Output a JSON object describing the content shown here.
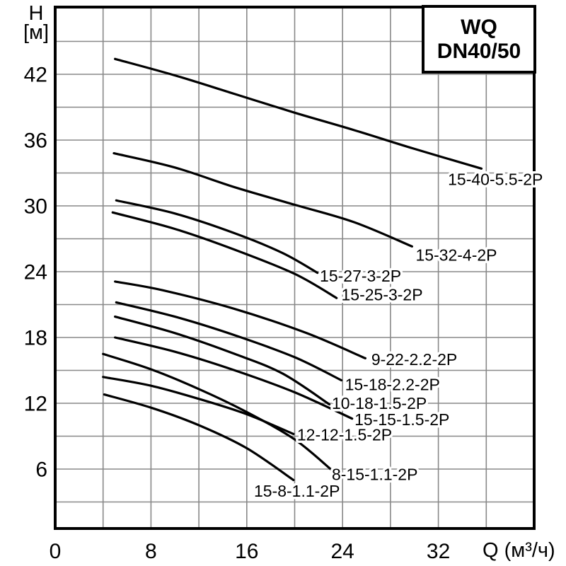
{
  "title_box": {
    "line1": "WQ",
    "line2": "DN40/50"
  },
  "axes": {
    "y_title_line1": "H",
    "y_title_line2": "[м]",
    "x_title": "Q (м³/ч)"
  },
  "colors": {
    "curve": "#000000",
    "grid": "#888888",
    "frame": "#000000",
    "text": "#000000",
    "background": "#ffffff"
  },
  "chart_data": {
    "type": "line",
    "title": "WQ DN40/50",
    "xlabel": "Q (м³/ч)",
    "ylabel": "H [м]",
    "xlim": [
      0,
      40
    ],
    "ylim": [
      0,
      48
    ],
    "x_ticks": [
      0,
      8,
      16,
      24,
      32
    ],
    "y_ticks": [
      6,
      12,
      18,
      24,
      30,
      36,
      42
    ],
    "grid": {
      "x_step": 4,
      "y_step": 3,
      "visible": true
    },
    "legend_position": "inline-labels",
    "series": [
      {
        "name": "15-40-5.5-2P",
        "points": [
          [
            5.0,
            43.4
          ],
          [
            10,
            41.9
          ],
          [
            15,
            40.2
          ],
          [
            20,
            38.5
          ],
          [
            25,
            36.9
          ],
          [
            30,
            35.2
          ],
          [
            35.6,
            33.4
          ]
        ],
        "label_at": [
          32.8,
          31.9
        ]
      },
      {
        "name": "15-32-4-2P",
        "points": [
          [
            4.9,
            34.8
          ],
          [
            10,
            33.5
          ],
          [
            15,
            31.7
          ],
          [
            20,
            30.1
          ],
          [
            25,
            28.5
          ],
          [
            29.8,
            26.3
          ]
        ],
        "label_at": [
          30.1,
          25.0
        ]
      },
      {
        "name": "15-27-3-2P",
        "points": [
          [
            5.1,
            30.5
          ],
          [
            10,
            29.3
          ],
          [
            15,
            27.5
          ],
          [
            19,
            25.7
          ],
          [
            21.9,
            23.9
          ]
        ],
        "label_at": [
          22.1,
          23.1
        ]
      },
      {
        "name": "15-25-3-2P",
        "points": [
          [
            4.8,
            29.4
          ],
          [
            10,
            27.9
          ],
          [
            15,
            26.0
          ],
          [
            20,
            23.8
          ],
          [
            23.5,
            21.6
          ]
        ],
        "label_at": [
          23.9,
          21.4
        ]
      },
      {
        "name": "9-22-2.2-2P",
        "points": [
          [
            5.0,
            23.1
          ],
          [
            9,
            22.3
          ],
          [
            15,
            20.6
          ],
          [
            21,
            18.4
          ],
          [
            25.9,
            16.1
          ]
        ],
        "label_at": [
          26.4,
          15.5
        ]
      },
      {
        "name": "15-18-2.2-2P",
        "points": [
          [
            5.1,
            21.2
          ],
          [
            10,
            19.9
          ],
          [
            15,
            18.2
          ],
          [
            20,
            16.2
          ],
          [
            23.9,
            14.1
          ]
        ],
        "label_at": [
          24.2,
          13.2
        ]
      },
      {
        "name": "10-18-1.5-2P",
        "points": [
          [
            5.0,
            19.9
          ],
          [
            10,
            18.4
          ],
          [
            15,
            16.5
          ],
          [
            19,
            14.7
          ],
          [
            22.9,
            11.9
          ]
        ],
        "label_at": [
          23.1,
          11.5
        ]
      },
      {
        "name": "15-15-1.5-2P",
        "points": [
          [
            5.0,
            18.0
          ],
          [
            10,
            16.7
          ],
          [
            15,
            15.0
          ],
          [
            20,
            13.0
          ],
          [
            24.8,
            10.6
          ]
        ],
        "label_at": [
          25.0,
          10.0
        ]
      },
      {
        "name": "12-12-1.5-2P",
        "points": [
          [
            4.0,
            14.4
          ],
          [
            8,
            13.6
          ],
          [
            12,
            12.4
          ],
          [
            16,
            11.0
          ],
          [
            19.9,
            9.2
          ]
        ],
        "label_at": [
          20.2,
          8.6
        ]
      },
      {
        "name": "8-15-1.1-2P",
        "points": [
          [
            4.0,
            16.5
          ],
          [
            8,
            15.1
          ],
          [
            12,
            13.3
          ],
          [
            16,
            11.2
          ],
          [
            20,
            8.7
          ],
          [
            23.0,
            6.0
          ]
        ],
        "label_at": [
          23.1,
          5.0
        ]
      },
      {
        "name": "15-8-1.1-2P",
        "points": [
          [
            4.1,
            12.8
          ],
          [
            8,
            11.6
          ],
          [
            12,
            10.0
          ],
          [
            16,
            7.9
          ],
          [
            19.9,
            5.0
          ]
        ],
        "label_at": [
          16.6,
          3.5
        ]
      }
    ]
  }
}
